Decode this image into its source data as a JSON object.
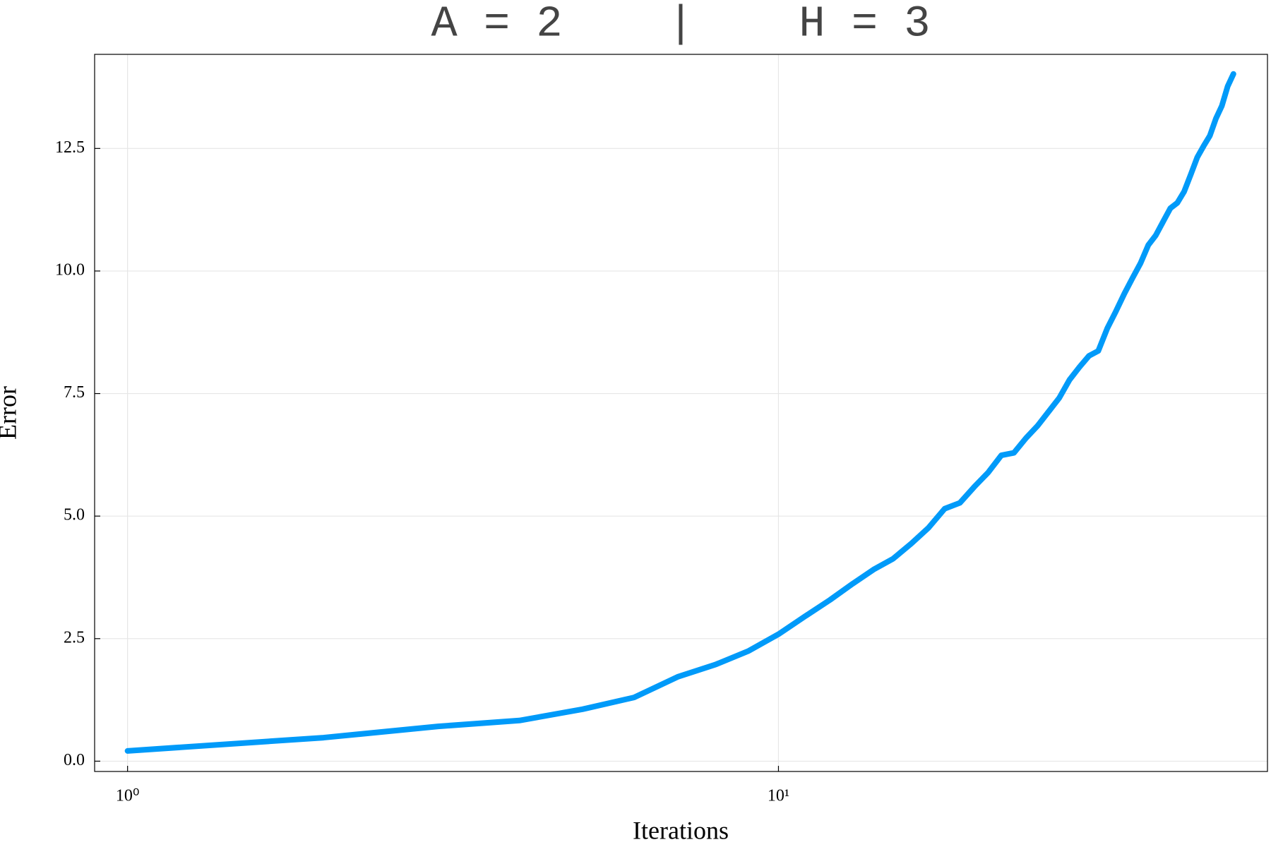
{
  "chart_data": {
    "type": "line",
    "title": "A = 2    |    H = 3",
    "x_label": "Iterations",
    "y_label": "Error",
    "x": [
      1,
      2,
      3,
      4,
      5,
      6,
      7,
      8,
      9,
      10,
      11,
      12,
      13,
      14,
      15,
      16,
      17,
      18,
      19,
      20,
      21,
      22,
      23,
      24,
      25,
      26,
      27,
      28,
      29,
      30,
      31,
      32,
      33,
      34,
      35,
      36,
      37,
      38,
      39,
      40,
      41,
      42,
      43,
      44,
      45,
      46,
      47,
      48,
      49,
      50
    ],
    "values": [
      0.21,
      0.48,
      0.71,
      0.83,
      1.06,
      1.3,
      1.72,
      1.97,
      2.25,
      2.59,
      2.96,
      3.29,
      3.62,
      3.91,
      4.13,
      4.44,
      4.76,
      5.15,
      5.27,
      5.6,
      5.89,
      6.24,
      6.29,
      6.59,
      6.84,
      7.13,
      7.41,
      7.78,
      8.04,
      8.27,
      8.37,
      8.83,
      9.18,
      9.54,
      9.86,
      10.16,
      10.53,
      10.73,
      11.01,
      11.28,
      11.39,
      11.62,
      11.97,
      12.32,
      12.55,
      12.76,
      13.11,
      13.37,
      13.77,
      14.02
    ],
    "color": "#009af9",
    "x_log": true,
    "xlim": [
      0.89,
      56.4
    ],
    "xticks": [
      {
        "value": 1,
        "label": "10⁰"
      },
      {
        "value": 10,
        "label": "10¹"
      }
    ],
    "ylim": [
      -0.21,
      14.42
    ],
    "yticks": [
      {
        "value": 0,
        "label": "0.0"
      },
      2.5,
      {
        "value": 5,
        "label": "5.0"
      },
      7.5,
      {
        "value": 10,
        "label": "10.0"
      },
      12.5
    ],
    "grid": true
  }
}
